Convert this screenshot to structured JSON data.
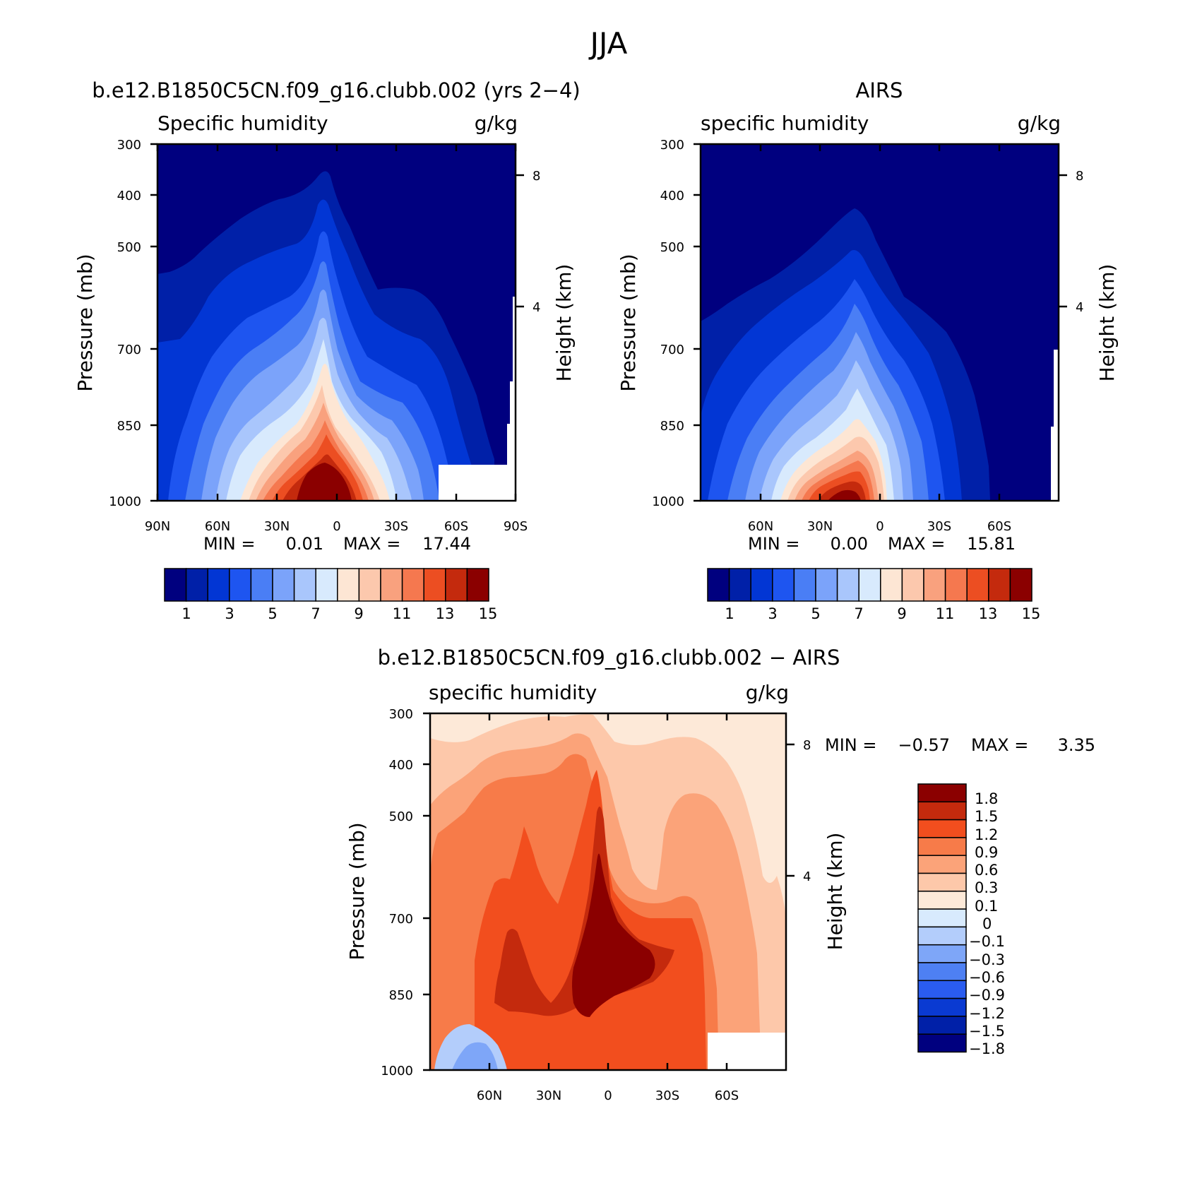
{
  "figure_title": "JJA",
  "chart_data": [
    {
      "type": "contour",
      "panel": "model",
      "title": "b.e12.B1850C5CN.f09_g16.clubb.002 (yrs 2−4)",
      "variable_label": "Specific humidity",
      "units": "g/kg",
      "ylabel": "Pressure (mb)",
      "y2label": "Height (km)",
      "x_ticks": [
        "90N",
        "60N",
        "30N",
        "0",
        "30S",
        "60S",
        "90S"
      ],
      "y_ticks": [
        "300",
        "400",
        "500",
        "700",
        "850",
        "1000"
      ],
      "y2_ticks": [
        "8",
        "4"
      ],
      "ylim": [
        1000,
        300
      ],
      "min_label": "MIN =",
      "min_value": "0.01",
      "max_label": "MAX =",
      "max_value": "17.44",
      "levels": [
        1,
        2,
        3,
        4,
        5,
        6,
        7,
        8,
        9,
        10,
        11,
        12,
        13,
        14,
        15
      ],
      "colorbar_labels": [
        "1",
        "3",
        "5",
        "7",
        "9",
        "11",
        "13",
        "15"
      ],
      "colors": [
        "#00007f",
        "#0020a8",
        "#0236d4",
        "#1e55f0",
        "#4a7ef5",
        "#7ba3fa",
        "#a9c6fc",
        "#d8eafd",
        "#fde6d4",
        "#fcc8ad",
        "#f9a17e",
        "#f5784f",
        "#ec4e22",
        "#c42a0d",
        "#8b0000"
      ]
    },
    {
      "type": "contour",
      "panel": "obs",
      "title": "AIRS",
      "variable_label": "specific humidity",
      "units": "g/kg",
      "ylabel": "Pressure (mb)",
      "y2label": "Height (km)",
      "x_ticks": [
        "60N",
        "30N",
        "0",
        "30S",
        "60S"
      ],
      "y_ticks": [
        "300",
        "400",
        "500",
        "700",
        "850",
        "1000"
      ],
      "y2_ticks": [
        "8",
        "4"
      ],
      "ylim": [
        1000,
        300
      ],
      "min_label": "MIN =",
      "min_value": "0.00",
      "max_label": "MAX =",
      "max_value": "15.81",
      "levels": [
        1,
        2,
        3,
        4,
        5,
        6,
        7,
        8,
        9,
        10,
        11,
        12,
        13,
        14,
        15
      ],
      "colorbar_labels": [
        "1",
        "3",
        "5",
        "7",
        "9",
        "11",
        "13",
        "15"
      ],
      "colors": [
        "#00007f",
        "#0020a8",
        "#0236d4",
        "#1e55f0",
        "#4a7ef5",
        "#7ba3fa",
        "#a9c6fc",
        "#d8eafd",
        "#fde6d4",
        "#fcc8ad",
        "#f9a17e",
        "#f5784f",
        "#ec4e22",
        "#c42a0d",
        "#8b0000"
      ]
    },
    {
      "type": "contour",
      "panel": "difference",
      "title": "b.e12.B1850C5CN.f09_g16.clubb.002 − AIRS",
      "variable_label": "specific humidity",
      "units": "g/kg",
      "ylabel": "Pressure (mb)",
      "y2label": "Height (km)",
      "x_ticks": [
        "60N",
        "30N",
        "0",
        "30S",
        "60S"
      ],
      "y_ticks": [
        "300",
        "400",
        "500",
        "700",
        "850",
        "1000"
      ],
      "y2_ticks": [
        "8",
        "4"
      ],
      "ylim": [
        1000,
        300
      ],
      "min_label": "MIN =",
      "min_value": "−0.57",
      "max_label": "MAX =",
      "max_value": "3.35",
      "levels": [
        -1.8,
        -1.5,
        -1.2,
        -0.9,
        -0.6,
        -0.3,
        -0.1,
        0,
        0.1,
        0.3,
        0.6,
        0.9,
        1.2,
        1.5,
        1.8
      ],
      "colorbar_labels": [
        "1.8",
        "1.5",
        "1.2",
        "0.9",
        "0.6",
        "0.3",
        "0.1",
        "0",
        "−0.1",
        "−0.3",
        "−0.6",
        "−0.9",
        "−1.2",
        "−1.5",
        "−1.8"
      ],
      "colors": [
        "#8b0000",
        "#c42a0d",
        "#f24e1e",
        "#f77b49",
        "#fba379",
        "#fdc8aa",
        "#fde9d8",
        "#d8eafd",
        "#b3cdfb",
        "#7ea6f8",
        "#4e80f3",
        "#2a5cf0",
        "#0a3ad2",
        "#0020a8",
        "#00007f"
      ]
    }
  ]
}
